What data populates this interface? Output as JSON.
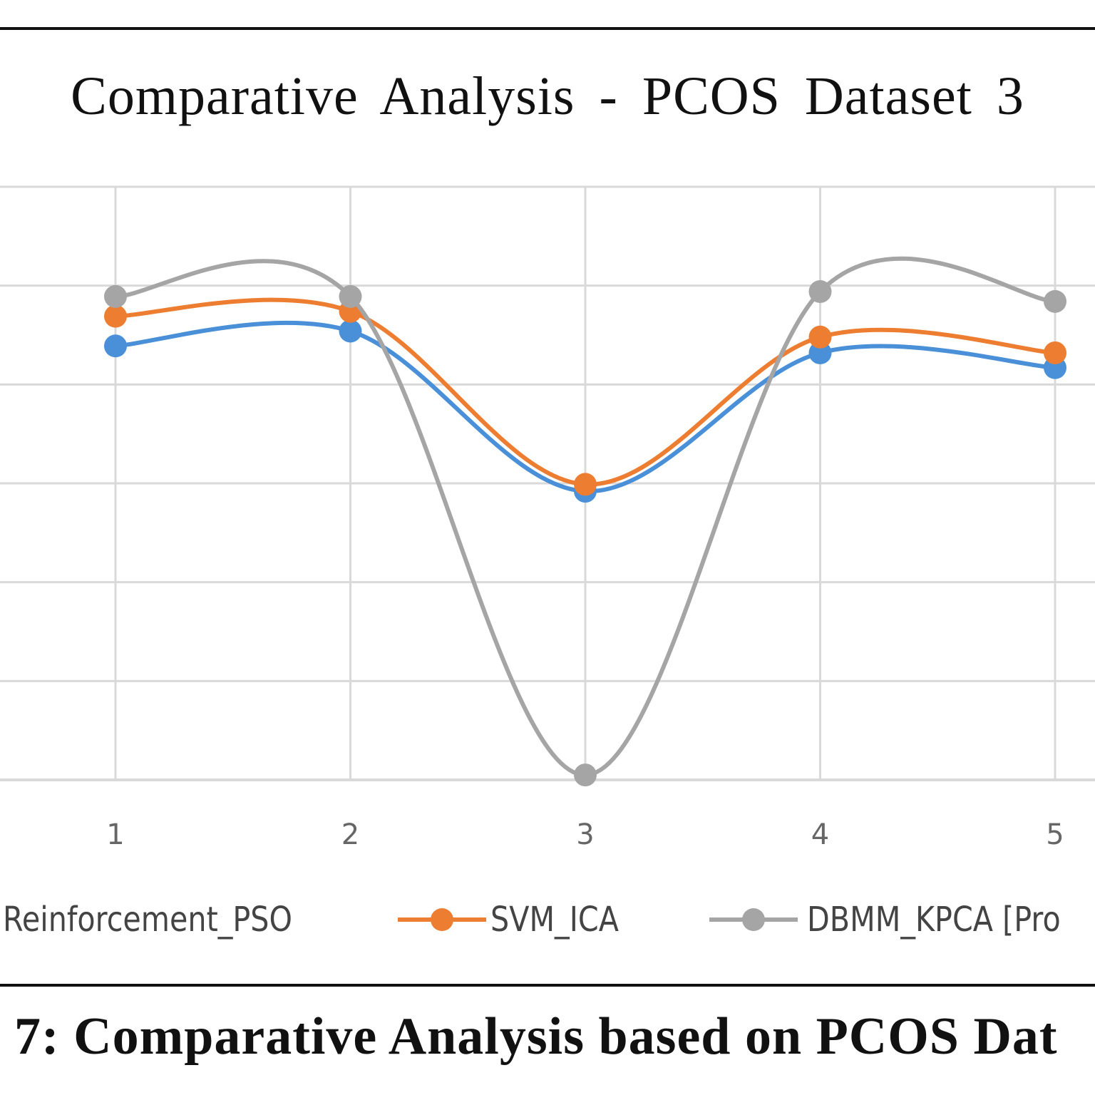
{
  "chart_data": {
    "type": "line",
    "title": "Comparative Analysis  - PCOS Dataset 3",
    "xlabel": "",
    "ylabel": "",
    "categories": [
      "1",
      "2",
      "3",
      "4",
      "5"
    ],
    "ylim": [
      0,
      6
    ],
    "y_units_note": "no y tick labels visible; values in gridline units",
    "grid": true,
    "smooth": true,
    "legend_position": "bottom",
    "series": [
      {
        "name": "Reinforcement_PSO",
        "color": "#4a90d9",
        "values": [
          4.39,
          4.54,
          2.92,
          4.32,
          4.17
        ]
      },
      {
        "name": "SVM_ICA",
        "color": "#ed7d31",
        "values": [
          4.69,
          4.74,
          2.99,
          4.48,
          4.32
        ]
      },
      {
        "name": "DBMM_KPCA [Pro",
        "color": "#a5a5a5",
        "values": [
          4.89,
          4.89,
          0.05,
          4.94,
          4.84
        ]
      }
    ]
  },
  "caption": "7: Comparative Analysis based on PCOS Dat"
}
